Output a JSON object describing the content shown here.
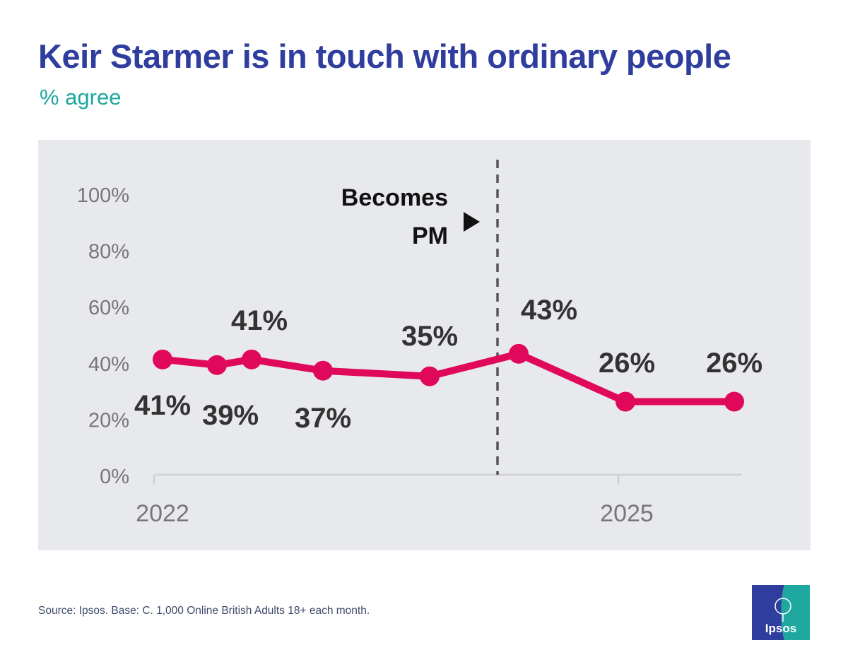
{
  "title": "Keir Starmer is in touch with ordinary people",
  "subtitle": "% agree",
  "source": "Source: Ipsos. Base: C. 1,000 Online British Adults 18+ each month.",
  "logo": {
    "text": "Ipsos",
    "colors": {
      "left": "#2f3e9e",
      "right": "#1ea8a0"
    }
  },
  "colors": {
    "line": "#e0085a",
    "title": "#2f3e9e",
    "subtitle": "#1ea8a0",
    "panel": "#e8e9ed",
    "axis": "#d2d3d6",
    "tick_text": "#777777",
    "data_label": "#333333"
  },
  "chart_data": {
    "type": "line",
    "title": "Keir Starmer is in touch with ordinary people",
    "subtitle": "% agree",
    "ylim": [
      0,
      100
    ],
    "yticks": [
      "0%",
      "20%",
      "40%",
      "60%",
      "80%",
      "100%"
    ],
    "xticks": [
      "2022",
      "2025"
    ],
    "grid": false,
    "series": [
      {
        "values": [
          41,
          39,
          41,
          37,
          35,
          43,
          26,
          26
        ],
        "labels": [
          "41%",
          "39%",
          "41%",
          "37%",
          "35%",
          "43%",
          "26%",
          "26%"
        ]
      }
    ],
    "annotation": {
      "text_line1": "Becomes",
      "text_line2": "PM"
    }
  }
}
